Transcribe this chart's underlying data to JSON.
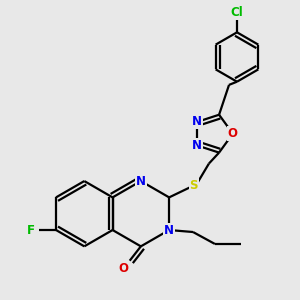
{
  "bg_color": "#e8e8e8",
  "bond_color": "#000000",
  "bond_width": 1.6,
  "atom_colors": {
    "N": "#0000ee",
    "O": "#dd0000",
    "S": "#cccc00",
    "F": "#00bb00",
    "Cl": "#00bb00",
    "C": "#000000"
  },
  "font_size_atom": 8.5,
  "fig_width": 3.0,
  "fig_height": 3.0,
  "dpi": 100
}
